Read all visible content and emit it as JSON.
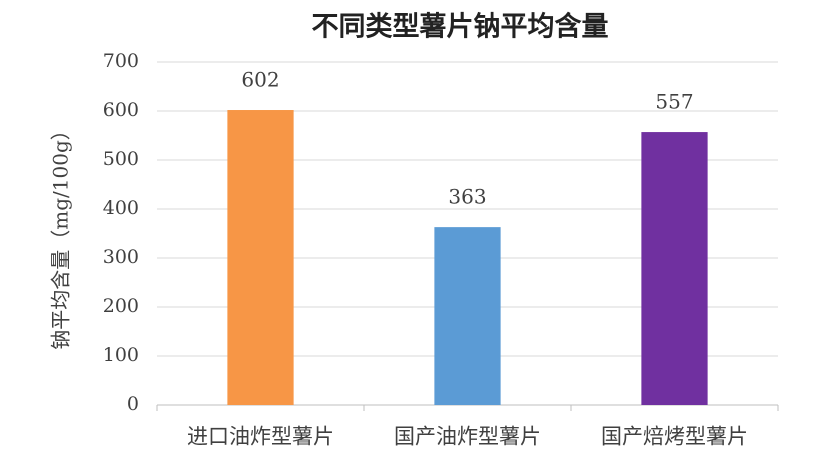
{
  "chart_data": {
    "type": "bar",
    "title": "不同类型薯片钠平均含量",
    "y_label": "钠平均含量（mg/100g）",
    "categories": [
      "进口油炸型薯片",
      "国产油炸型薯片",
      "国产焙烤型薯片"
    ],
    "values": [
      602,
      363,
      557
    ],
    "colors": [
      "#f79646",
      "#5b9bd5",
      "#7030a0"
    ],
    "ylim": [
      0,
      700
    ],
    "yticks": [
      0,
      100,
      200,
      300,
      400,
      500,
      600,
      700
    ],
    "grid": true
  }
}
